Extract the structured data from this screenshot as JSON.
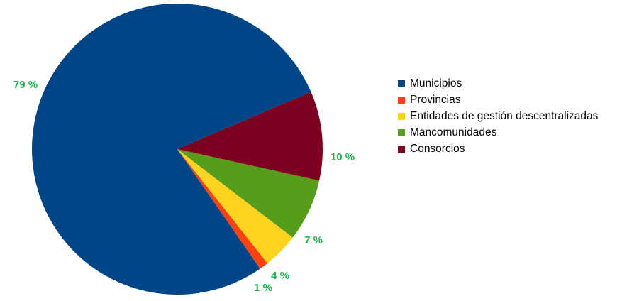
{
  "chart_data": {
    "type": "pie",
    "title": "",
    "slices": [
      {
        "label": "Municipios",
        "value": 79,
        "display": "79 %",
        "color": "#004586"
      },
      {
        "label": "Provincias",
        "value": 1,
        "display": "1 %",
        "color": "#ff420e"
      },
      {
        "label": "Entidades de gestión descentralizadas",
        "value": 4,
        "display": "4 %",
        "color": "#ffd320"
      },
      {
        "label": "Mancomunidades",
        "value": 7,
        "display": "7 %",
        "color": "#579d1c"
      },
      {
        "label": "Consorcios",
        "value": 10,
        "display": "10 %",
        "color": "#7e0021"
      }
    ],
    "value_label_color": "#22b14c",
    "legend_position": "right",
    "start_slice": "Consorcios",
    "direction": "counter-clockwise"
  }
}
